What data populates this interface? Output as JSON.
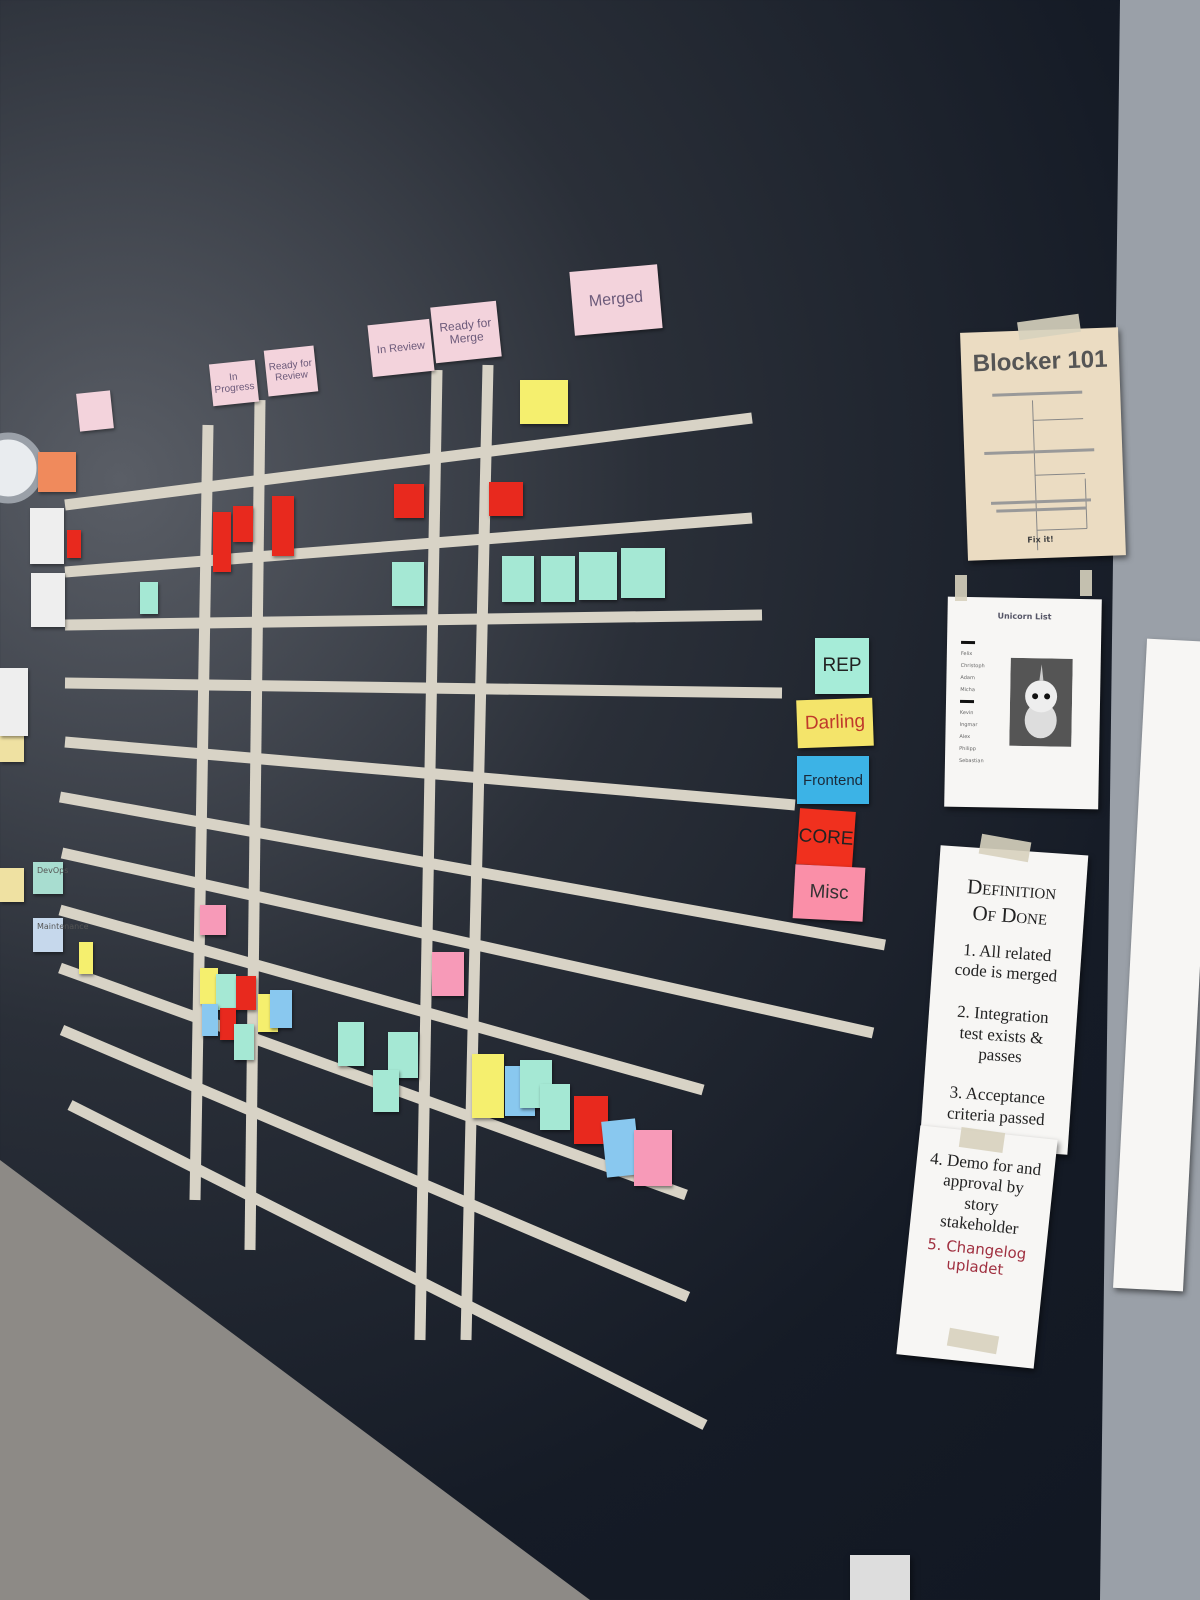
{
  "board": {
    "columns": [
      "In Progress",
      "Ready for Review",
      "In Review",
      "Ready for Merge",
      "Merged"
    ],
    "swimlane_labels": [
      "DevOps",
      "Maintenance"
    ],
    "categories": [
      {
        "label": "REP",
        "color": "#a6ecd8"
      },
      {
        "label": "Darling",
        "color": "#f4e46a"
      },
      {
        "label": "Frontend",
        "color": "#3cb3e6"
      },
      {
        "label": "CORE",
        "color": "#f0301e"
      },
      {
        "label": "Misc",
        "color": "#fa8fa8"
      }
    ],
    "note_colors": {
      "red": "#e8291e",
      "mint": "#a5e8d4",
      "yellow": "#f5ef6e",
      "pink": "#f79ab8",
      "blue": "#89c8ef"
    }
  },
  "blocker": {
    "title": "Blocker 101",
    "final_step": "Fix it!"
  },
  "unicorn": {
    "title": "Unicorn List",
    "names_group1": [
      "Felix",
      "Christoph",
      "Adam",
      "Micha"
    ],
    "names_group2": [
      "Kevin",
      "Ingmar",
      "Alex",
      "Philipp",
      "Sebastian"
    ]
  },
  "definition_of_done": {
    "title_line1": "Definition",
    "title_line2": "Of Done",
    "items": [
      "1. All related code is merged",
      "2. Integration test exists & passes",
      "3. Acceptance criteria passed",
      "4. Demo for and approval by story stakeholder"
    ],
    "handwritten_item": "5. Changelog upladet"
  }
}
